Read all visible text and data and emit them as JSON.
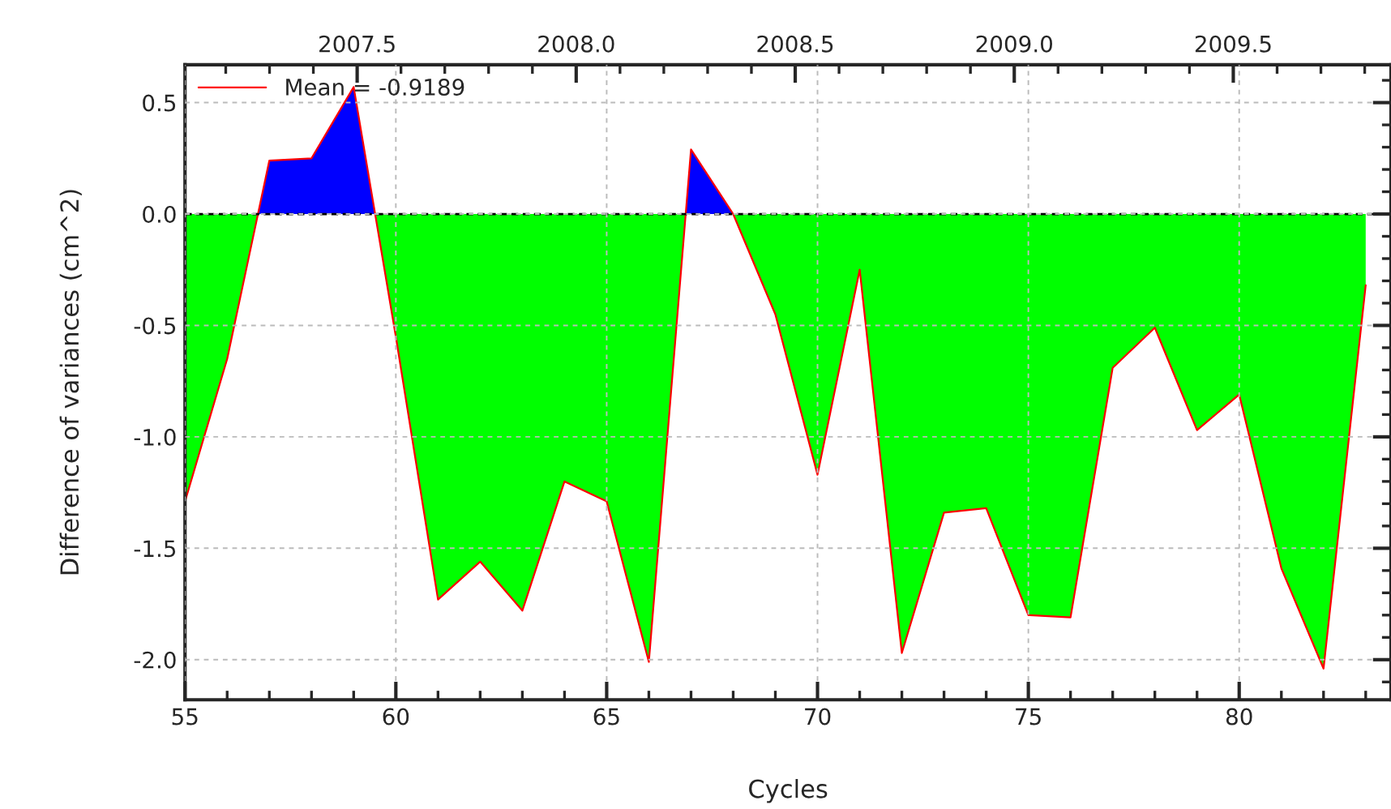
{
  "chart_data": {
    "type": "line",
    "xlabel": "Cycles",
    "ylabel": "Difference of variances (cm^2)",
    "x": [
      55,
      56,
      57,
      58,
      59,
      60,
      61,
      62,
      63,
      64,
      65,
      66,
      67,
      68,
      69,
      70,
      71,
      72,
      73,
      74,
      75,
      76,
      77,
      78,
      79,
      80,
      81,
      82,
      83
    ],
    "series": [
      {
        "type": "area",
        "color": "#0000ff",
        "x": [
          56.73,
          57,
          58,
          59,
          59.51,
          63,
          66.87,
          67,
          68
        ],
        "values": [
          0,
          0.24,
          0.25,
          0.57,
          0,
          null,
          0,
          0.29,
          0
        ]
      },
      {
        "type": "area",
        "color": "#00ff00",
        "x": [
          55,
          56,
          56.73,
          58,
          59.51,
          60,
          61,
          62,
          63,
          64,
          65,
          66,
          66.87,
          67.5,
          68,
          69,
          70,
          71,
          72,
          73,
          74,
          75,
          76,
          77,
          78,
          79,
          80,
          81,
          82,
          83
        ],
        "values": [
          -1.29,
          -0.65,
          0,
          null,
          0,
          -0.55,
          -1.73,
          -1.56,
          -1.78,
          -1.2,
          -1.29,
          -2.01,
          0,
          null,
          0,
          -0.45,
          -1.17,
          -0.25,
          -1.97,
          -1.34,
          -1.32,
          -1.8,
          -1.81,
          -0.69,
          -0.51,
          -0.97,
          -0.81,
          -1.59,
          -2.04,
          -0.32
        ]
      },
      {
        "name": "Mean = -0.9189",
        "color": "#ff0000",
        "values": [
          -1.29,
          -0.65,
          0.24,
          0.25,
          0.57,
          -0.55,
          -1.73,
          -1.56,
          -1.78,
          -1.2,
          -1.29,
          -2.01,
          0.29,
          0.0,
          -0.45,
          -1.17,
          -0.25,
          -1.97,
          -1.34,
          -1.32,
          -1.8,
          -1.81,
          -0.69,
          -0.51,
          -0.97,
          -0.81,
          -1.59,
          -2.04,
          -0.32
        ]
      }
    ],
    "xlim": [
      55,
      83.6
    ],
    "xticks": [
      55,
      60,
      65,
      70,
      75,
      80
    ],
    "ylim": [
      -2.18,
      0.67
    ],
    "yticks": [
      {
        "value": 0.5,
        "label": "0.5"
      },
      {
        "value": 0.0,
        "label": "0.0"
      },
      {
        "value": -0.5,
        "label": "-0.5"
      },
      {
        "value": -1.0,
        "label": "-1.0"
      },
      {
        "value": -1.5,
        "label": "-1.5"
      },
      {
        "value": -2.0,
        "label": "-2.0"
      }
    ],
    "x2lim": [
      2007.107,
      2009.86
    ],
    "x2ticks": [
      {
        "value": 2007.5,
        "label": "2007.5"
      },
      {
        "value": 2008.0,
        "label": "2008.0"
      },
      {
        "value": 2008.5,
        "label": "2008.5"
      },
      {
        "value": 2009.0,
        "label": "2009.0"
      },
      {
        "value": 2009.5,
        "label": "2009.5"
      }
    ],
    "ref_lines": [
      {
        "axis": "y",
        "value": 0,
        "label": null,
        "color": "#000000",
        "line_style": "dashed"
      }
    ],
    "grid": true,
    "legend": "top left",
    "line_style": "solid"
  }
}
